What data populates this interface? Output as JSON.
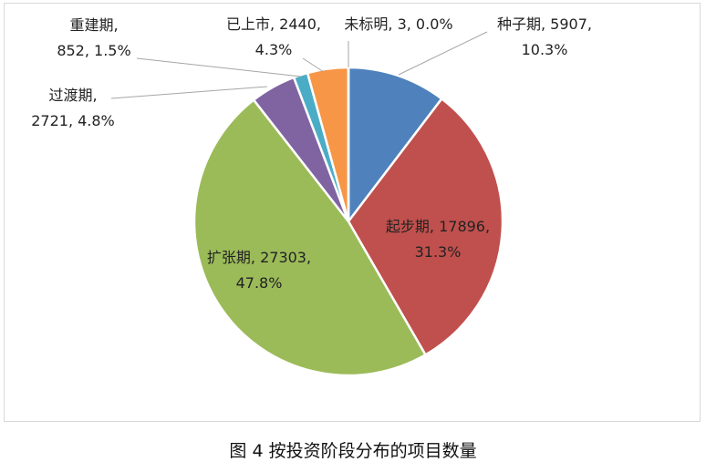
{
  "chart_data": {
    "type": "pie",
    "categories": [
      "种子期",
      "起步期",
      "扩张期",
      "过渡期",
      "重建期",
      "已上市",
      "未标明"
    ],
    "values": [
      5907,
      17896,
      27303,
      2721,
      852,
      2440,
      3
    ],
    "percents": [
      "10.3%",
      "31.3%",
      "47.8%",
      "4.8%",
      "1.5%",
      "4.3%",
      "0.0%"
    ],
    "colors": [
      "#4F81BD",
      "#C0504D",
      "#9BBB59",
      "#8064A2",
      "#4BACC6",
      "#F79646",
      "#2C4D75"
    ],
    "data_labels": [
      {
        "line1": "种子期, 5907,",
        "line2": "10.3%"
      },
      {
        "line1": "起步期, 17896,",
        "line2": "31.3%"
      },
      {
        "line1": "扩张期, 27303,",
        "line2": "47.8%"
      },
      {
        "line1": "过渡期,",
        "line2": "2721, 4.8%"
      },
      {
        "line1": "重建期,",
        "line2": "852, 1.5%"
      },
      {
        "line1": "已上市, 2440,",
        "line2": "4.3%"
      },
      {
        "line1": "未标明, 3, 0.0%",
        "line2": ""
      }
    ],
    "title": "",
    "legend": "none"
  },
  "caption": "图 4  按投资阶段分布的项目数量"
}
